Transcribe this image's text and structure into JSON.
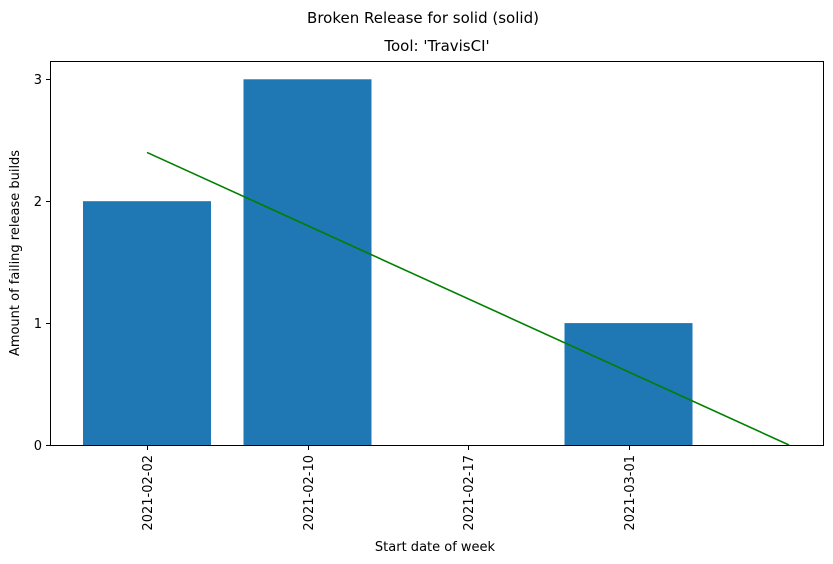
{
  "chart_data": {
    "type": "bar",
    "suptitle": "Broken Release for solid (solid)",
    "title": "Tool: 'TravisCI'",
    "xlabel": "Start date of week",
    "ylabel": "Amount of failing release builds",
    "categories": [
      "2021-02-02",
      "2021-02-10",
      "2021-02-17",
      "2021-03-01"
    ],
    "values": [
      2,
      3,
      0,
      1
    ],
    "ylim": [
      0,
      3.15
    ],
    "yticks": [
      0,
      1,
      2,
      3
    ],
    "bar_color": "#1f77b4",
    "trend_line": {
      "color": "#008000",
      "start": {
        "x": "2021-02-02",
        "y": 2.4
      },
      "end": {
        "y": 0
      }
    },
    "grid": false,
    "legend": "none"
  }
}
